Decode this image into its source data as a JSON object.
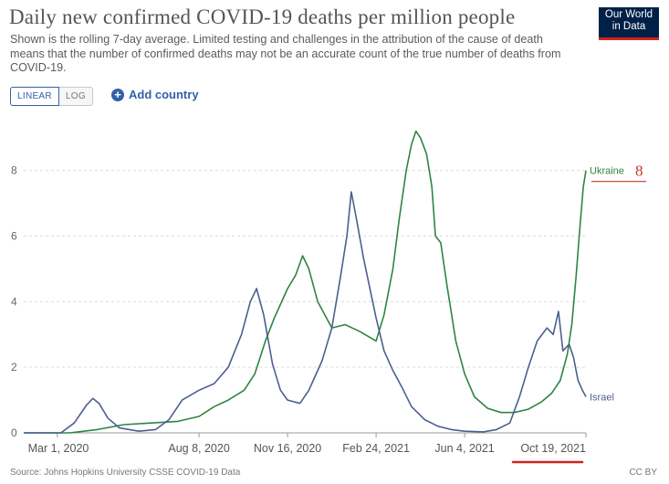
{
  "header": {
    "title": "Daily new confirmed COVID-19 deaths per million people",
    "subtitle": "Shown is the rolling 7-day average. Limited testing and challenges in the attribution of the cause of death means that the number of confirmed deaths may not be an accurate count of the true number of deaths from COVID-19."
  },
  "logo": {
    "line1": "Our World",
    "line2": "in Data"
  },
  "controls": {
    "linear_label": "LINEAR",
    "log_label": "LOG",
    "add_country_label": "Add country"
  },
  "footer": {
    "source": "Source: Johns Hopkins University CSSE COVID-19 Data",
    "license": "CC BY"
  },
  "annotation": {
    "value": "8",
    "color": "#c0392b"
  },
  "chart_data": {
    "type": "line",
    "x_tick_labels": [
      "Mar 1, 2020",
      "Aug 8, 2020",
      "Nov 16, 2020",
      "Feb 24, 2021",
      "Jun 4, 2021",
      "Oct 19, 2021"
    ],
    "x_tick_dates": [
      "2020-03-01",
      "2020-08-08",
      "2020-11-16",
      "2021-02-24",
      "2021-06-04",
      "2021-10-19"
    ],
    "xlim": [
      "2020-01-23",
      "2021-10-19"
    ],
    "ylim": [
      0,
      9.3
    ],
    "y_ticks": [
      0,
      2,
      4,
      6,
      8
    ],
    "grid": "horizontal dashed",
    "series": [
      {
        "name": "Ukraine",
        "color": "#2e8540",
        "points": [
          [
            "2020-01-23",
            0
          ],
          [
            "2020-03-15",
            0
          ],
          [
            "2020-04-15",
            0.1
          ],
          [
            "2020-05-15",
            0.25
          ],
          [
            "2020-06-15",
            0.3
          ],
          [
            "2020-07-15",
            0.35
          ],
          [
            "2020-08-08",
            0.5
          ],
          [
            "2020-08-25",
            0.8
          ],
          [
            "2020-09-10",
            1.0
          ],
          [
            "2020-09-28",
            1.3
          ],
          [
            "2020-10-10",
            1.8
          ],
          [
            "2020-10-22",
            2.8
          ],
          [
            "2020-11-01",
            3.5
          ],
          [
            "2020-11-16",
            4.4
          ],
          [
            "2020-11-25",
            4.8
          ],
          [
            "2020-12-03",
            5.4
          ],
          [
            "2020-12-10",
            5.0
          ],
          [
            "2020-12-20",
            4.0
          ],
          [
            "2021-01-05",
            3.2
          ],
          [
            "2021-01-20",
            3.3
          ],
          [
            "2021-02-05",
            3.1
          ],
          [
            "2021-02-24",
            2.8
          ],
          [
            "2021-03-05",
            3.6
          ],
          [
            "2021-03-15",
            5.0
          ],
          [
            "2021-03-22",
            6.5
          ],
          [
            "2021-03-30",
            8.0
          ],
          [
            "2021-04-05",
            8.8
          ],
          [
            "2021-04-10",
            9.2
          ],
          [
            "2021-04-15",
            9.0
          ],
          [
            "2021-04-22",
            8.5
          ],
          [
            "2021-04-28",
            7.5
          ],
          [
            "2021-05-02",
            6.0
          ],
          [
            "2021-05-08",
            5.8
          ],
          [
            "2021-05-15",
            4.5
          ],
          [
            "2021-05-25",
            2.8
          ],
          [
            "2021-06-04",
            1.8
          ],
          [
            "2021-06-15",
            1.1
          ],
          [
            "2021-06-30",
            0.75
          ],
          [
            "2021-07-15",
            0.62
          ],
          [
            "2021-07-30",
            0.62
          ],
          [
            "2021-08-15",
            0.72
          ],
          [
            "2021-08-30",
            0.95
          ],
          [
            "2021-09-10",
            1.2
          ],
          [
            "2021-09-20",
            1.6
          ],
          [
            "2021-09-28",
            2.4
          ],
          [
            "2021-10-03",
            3.3
          ],
          [
            "2021-10-08",
            4.8
          ],
          [
            "2021-10-12",
            6.2
          ],
          [
            "2021-10-16",
            7.5
          ],
          [
            "2021-10-19",
            8.0
          ]
        ]
      },
      {
        "name": "Israel",
        "color": "#4c5f8f",
        "points": [
          [
            "2020-01-23",
            0
          ],
          [
            "2020-03-05",
            0
          ],
          [
            "2020-03-20",
            0.3
          ],
          [
            "2020-04-03",
            0.85
          ],
          [
            "2020-04-10",
            1.05
          ],
          [
            "2020-04-17",
            0.9
          ],
          [
            "2020-04-27",
            0.45
          ],
          [
            "2020-05-10",
            0.15
          ],
          [
            "2020-06-01",
            0.05
          ],
          [
            "2020-06-20",
            0.1
          ],
          [
            "2020-07-05",
            0.4
          ],
          [
            "2020-07-20",
            1.0
          ],
          [
            "2020-08-08",
            1.3
          ],
          [
            "2020-08-25",
            1.5
          ],
          [
            "2020-09-10",
            2.0
          ],
          [
            "2020-09-25",
            3.0
          ],
          [
            "2020-10-05",
            4.0
          ],
          [
            "2020-10-12",
            4.4
          ],
          [
            "2020-10-20",
            3.6
          ],
          [
            "2020-10-30",
            2.1
          ],
          [
            "2020-11-08",
            1.3
          ],
          [
            "2020-11-16",
            1.0
          ],
          [
            "2020-11-30",
            0.9
          ],
          [
            "2020-12-10",
            1.3
          ],
          [
            "2020-12-25",
            2.2
          ],
          [
            "2021-01-05",
            3.2
          ],
          [
            "2021-01-15",
            4.8
          ],
          [
            "2021-01-22",
            6.0
          ],
          [
            "2021-01-27",
            7.35
          ],
          [
            "2021-02-02",
            6.5
          ],
          [
            "2021-02-10",
            5.3
          ],
          [
            "2021-02-24",
            3.5
          ],
          [
            "2021-03-05",
            2.5
          ],
          [
            "2021-03-15",
            1.9
          ],
          [
            "2021-03-25",
            1.4
          ],
          [
            "2021-04-05",
            0.8
          ],
          [
            "2021-04-20",
            0.4
          ],
          [
            "2021-05-05",
            0.2
          ],
          [
            "2021-05-20",
            0.1
          ],
          [
            "2021-06-04",
            0.05
          ],
          [
            "2021-06-25",
            0.03
          ],
          [
            "2021-07-10",
            0.1
          ],
          [
            "2021-07-25",
            0.3
          ],
          [
            "2021-08-05",
            1.1
          ],
          [
            "2021-08-15",
            2.0
          ],
          [
            "2021-08-25",
            2.8
          ],
          [
            "2021-09-05",
            3.2
          ],
          [
            "2021-09-12",
            3.0
          ],
          [
            "2021-09-18",
            3.7
          ],
          [
            "2021-09-23",
            2.5
          ],
          [
            "2021-09-30",
            2.7
          ],
          [
            "2021-10-05",
            2.3
          ],
          [
            "2021-10-10",
            1.6
          ],
          [
            "2021-10-15",
            1.3
          ],
          [
            "2021-10-19",
            1.1
          ]
        ]
      }
    ]
  }
}
